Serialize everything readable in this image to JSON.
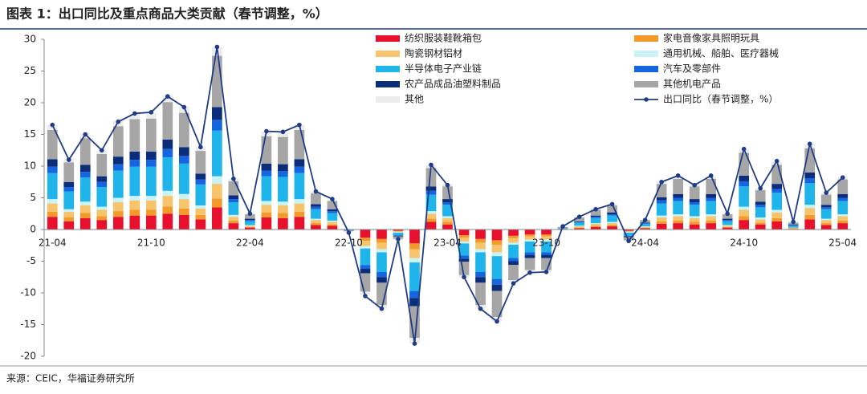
{
  "chart_data": {
    "type": "stacked_bar_line",
    "title": "图表 1：出口同比及重点商品大类贡献（春节调整，%）",
    "source": "来源：CEIC，华福证券研究所",
    "categories": [
      "21-04",
      null,
      null,
      null,
      null,
      null,
      "21-10",
      null,
      null,
      null,
      null,
      null,
      "22-04",
      null,
      null,
      null,
      null,
      null,
      "22-10",
      null,
      null,
      null,
      null,
      null,
      "23-04",
      null,
      null,
      null,
      null,
      null,
      "23-10",
      null,
      null,
      null,
      null,
      null,
      "24-04",
      null,
      null,
      null,
      null,
      null,
      "24-10",
      null,
      null,
      null,
      null,
      null,
      "25-04"
    ],
    "ylim": [
      -20,
      30
    ],
    "yticks": [
      -20,
      -15,
      -10,
      -5,
      0,
      5,
      10,
      15,
      20,
      25,
      30
    ],
    "grid": false,
    "series": [
      {
        "name": "纺织服装鞋靴箱包",
        "color": "#e8112d",
        "values": [
          2.0,
          1.3,
          1.8,
          1.5,
          2.0,
          2.2,
          2.2,
          2.5,
          2.3,
          1.6,
          3.5,
          1.0,
          0.3,
          1.9,
          1.8,
          2.0,
          0.7,
          0.6,
          -0.1,
          -1.3,
          -1.5,
          -0.2,
          -2.2,
          1.2,
          0.8,
          -0.9,
          -1.5,
          -1.7,
          -1.0,
          -0.8,
          -0.8,
          0.1,
          0.2,
          0.4,
          0.5,
          -0.2,
          0.2,
          0.9,
          1.0,
          0.8,
          1.0,
          0.3,
          1.5,
          0.8,
          1.3,
          0.1,
          1.6,
          0.7,
          1.0
        ]
      },
      {
        "name": "家电音像家具照明玩具",
        "color": "#f39a2b",
        "values": [
          0.8,
          0.6,
          0.8,
          0.6,
          0.9,
          0.9,
          0.9,
          1.1,
          1.0,
          0.7,
          1.4,
          0.4,
          0.1,
          0.8,
          0.8,
          0.8,
          0.3,
          0.2,
          0,
          -0.5,
          -0.6,
          -0.1,
          -0.9,
          0.5,
          0.4,
          -0.4,
          -0.6,
          -0.7,
          -0.4,
          -0.3,
          -0.3,
          0,
          0.1,
          0.2,
          0.2,
          -0.1,
          0.1,
          0.4,
          0.4,
          0.4,
          0.4,
          0.1,
          0.6,
          0.3,
          0.5,
          0.1,
          0.7,
          0.3,
          0.4
        ]
      },
      {
        "name": "陶瓷钢材铝材",
        "color": "#f7c46c",
        "values": [
          1.3,
          0.9,
          1.2,
          1.0,
          1.4,
          1.5,
          1.5,
          1.7,
          1.5,
          1.0,
          2.3,
          0.6,
          0.2,
          1.2,
          1.2,
          1.3,
          0.5,
          0.4,
          0,
          -0.8,
          -1.0,
          -0.1,
          -1.4,
          0.8,
          0.6,
          -0.6,
          -1.0,
          -1.2,
          -0.7,
          -0.5,
          -0.5,
          0,
          0.2,
          0.3,
          0.3,
          -0.1,
          0.1,
          0.6,
          0.7,
          0.6,
          0.7,
          0.2,
          1.0,
          0.5,
          0.9,
          0.1,
          1.1,
          0.5,
          0.7
        ]
      },
      {
        "name": "通用机械、船舶、医疗器械",
        "color": "#c9f3f7",
        "values": [
          0.7,
          0.4,
          0.6,
          0.5,
          0.7,
          0.7,
          0.7,
          0.8,
          0.8,
          0.5,
          1.2,
          0.3,
          0.1,
          0.6,
          0.6,
          0.7,
          0.2,
          0.2,
          0,
          -0.4,
          -0.5,
          -0.1,
          -0.7,
          0.4,
          0.3,
          -0.3,
          -0.5,
          -0.6,
          -0.3,
          -0.3,
          -0.3,
          0,
          0.1,
          0.1,
          0.2,
          -0.1,
          0.1,
          0.3,
          0.3,
          0.3,
          0.3,
          0.1,
          0.5,
          0.3,
          0.4,
          0,
          0.5,
          0.2,
          0.3
        ]
      },
      {
        "name": "半导体电子产业链",
        "color": "#1fb4ea",
        "values": [
          4.1,
          2.8,
          3.8,
          3.1,
          4.3,
          4.6,
          4.6,
          5.3,
          4.8,
          3.3,
          7.2,
          2.0,
          0.6,
          3.9,
          3.9,
          4.1,
          1.5,
          1.2,
          -0.1,
          -2.6,
          -3.1,
          -0.4,
          -4.5,
          2.6,
          1.8,
          -1.9,
          -3.1,
          -3.6,
          -2.1,
          -1.7,
          -1.7,
          0.1,
          0.5,
          0.8,
          1.0,
          -0.5,
          0.4,
          1.9,
          2.1,
          1.8,
          2.1,
          0.6,
          3.2,
          1.6,
          2.7,
          0.3,
          3.4,
          1.5,
          2.1
        ]
      },
      {
        "name": "汽车及零部件",
        "color": "#1565e0",
        "values": [
          1.0,
          0.7,
          0.9,
          0.8,
          1.0,
          1.1,
          1.1,
          1.3,
          1.2,
          0.8,
          1.7,
          0.5,
          0.2,
          0.9,
          0.9,
          1.0,
          0.4,
          0.3,
          0,
          -0.6,
          -0.8,
          -0.1,
          -1.1,
          0.6,
          0.4,
          -0.5,
          -0.8,
          -0.9,
          -0.5,
          -0.4,
          -0.4,
          0,
          0.1,
          0.2,
          0.2,
          -0.1,
          0.1,
          0.5,
          0.5,
          0.4,
          0.5,
          0.2,
          0.8,
          0.4,
          0.6,
          0.1,
          0.8,
          0.3,
          0.5
        ]
      },
      {
        "name": "农产品成品油塑料制品",
        "color": "#0b2d7a",
        "values": [
          1.2,
          0.8,
          1.1,
          0.9,
          1.2,
          1.3,
          1.3,
          1.5,
          1.4,
          0.9,
          2.0,
          0.6,
          0.2,
          1.1,
          1.1,
          1.2,
          0.4,
          0.3,
          0,
          -0.7,
          -0.9,
          -0.1,
          -1.3,
          0.7,
          0.5,
          -0.5,
          -0.9,
          -1.0,
          -0.6,
          -0.5,
          -0.5,
          0,
          0.1,
          0.2,
          0.3,
          -0.1,
          0.1,
          0.5,
          0.6,
          0.5,
          0.6,
          0.2,
          0.9,
          0.5,
          0.8,
          0.1,
          0.9,
          0.4,
          0.6
        ]
      },
      {
        "name": "其他机电产品",
        "color": "#a6a6a6",
        "values": [
          4.6,
          3.1,
          4.2,
          3.5,
          4.8,
          5.1,
          5.2,
          5.9,
          5.4,
          3.6,
          8.1,
          2.2,
          0.7,
          4.3,
          4.3,
          4.6,
          1.7,
          1.3,
          -0.1,
          -2.9,
          -3.5,
          -0.4,
          -5.0,
          2.9,
          2.0,
          -2.1,
          -3.5,
          -4.1,
          -2.4,
          -1.9,
          -1.9,
          0.2,
          0.6,
          0.9,
          1.1,
          -0.5,
          0.4,
          2.1,
          2.4,
          2.0,
          2.4,
          0.7,
          3.6,
          1.8,
          3.0,
          0.3,
          3.8,
          1.6,
          2.3
        ]
      },
      {
        "name": "其他",
        "color": "#ececec",
        "values": [
          0.8,
          0.6,
          0.8,
          0.6,
          0.9,
          0.9,
          0.9,
          1.1,
          1.0,
          0.7,
          1.4,
          0.4,
          0.1,
          0.8,
          0.8,
          0.8,
          0.3,
          0.2,
          0,
          -0.5,
          -0.6,
          -0.1,
          -0.9,
          0.5,
          0.4,
          -0.4,
          -0.6,
          -0.7,
          -0.4,
          -0.3,
          -0.3,
          0,
          0.1,
          0.2,
          0.2,
          -0.1,
          0.1,
          0.4,
          0.4,
          0.4,
          0.4,
          0.1,
          0.6,
          0.3,
          0.5,
          0.1,
          0.7,
          0.3,
          0.4
        ]
      }
    ],
    "line": {
      "name": "出口同比（春节调整，%）",
      "color": "#1f3c88",
      "values": [
        16.5,
        11,
        15,
        12.5,
        17,
        18.3,
        18.5,
        21,
        19.3,
        13,
        28.8,
        8,
        2.5,
        15.5,
        15.4,
        16.5,
        6,
        4.8,
        -0.5,
        -10.5,
        -12.5,
        -1.5,
        -18,
        10.2,
        7,
        -7.5,
        -12.5,
        -14.5,
        -8.5,
        -6.8,
        -6.7,
        0.5,
        2,
        3.2,
        4,
        -1.8,
        1.5,
        7.5,
        8.5,
        7,
        8.5,
        2.5,
        12.7,
        6.5,
        10.8,
        1.2,
        13.5,
        5.8,
        8.2
      ]
    }
  }
}
